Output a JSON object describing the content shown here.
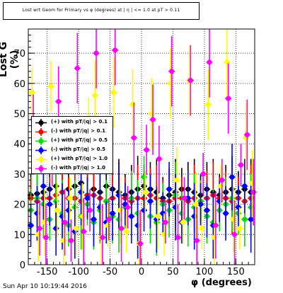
{
  "title": "Lost wrt Geom for Primary vs φ (degrees) at | η | <= 1.0 at pT > 0.11",
  "timestamp": "Sun Apr 10 10:19:44 2016",
  "chart_data": {
    "type": "scatter",
    "xlabel": "φ (degrees)",
    "ylabel": "Lost G (%)",
    "xlim": [
      -180,
      180
    ],
    "ylim": [
      0,
      78
    ],
    "xticks": [
      "-150",
      "-100",
      "-50",
      "0",
      "50",
      "100",
      "150"
    ],
    "yticks": [
      "0",
      "10",
      "20",
      "30",
      "40",
      "50",
      "60",
      "70"
    ],
    "grid": true,
    "legend_position": "middle-left",
    "series": [
      {
        "name": "(+) with pT/|q| > 0.1",
        "color": "#000000",
        "x": [
          -176,
          -166,
          -156,
          -146,
          -136,
          -126,
          -116,
          -106,
          -96,
          -86,
          -76,
          -66,
          -56,
          -46,
          -36,
          -26,
          -16,
          -6,
          4,
          14,
          24,
          34,
          44,
          54,
          64,
          74,
          84,
          94,
          104,
          114,
          124,
          134,
          144,
          154,
          164,
          174
        ],
        "y": [
          23,
          23.5,
          24,
          25,
          26,
          24,
          25,
          26,
          27,
          23,
          25,
          24,
          26,
          25,
          24,
          23,
          24,
          25,
          26,
          25,
          24,
          22,
          23,
          24,
          25,
          25,
          24,
          23,
          25,
          24,
          23,
          24,
          25,
          24,
          25,
          24
        ]
      },
      {
        "name": "(-) with pT/|q| > 0.1",
        "color": "#ff0000",
        "x": [
          -176,
          -166,
          -156,
          -146,
          -136,
          -126,
          -116,
          -106,
          -96,
          -86,
          -76,
          -66,
          -56,
          -46,
          -36,
          -26,
          -16,
          -6,
          4,
          14,
          24,
          34,
          44,
          54,
          64,
          74,
          84,
          94,
          104,
          114,
          124,
          134,
          144,
          154,
          164,
          174
        ],
        "y": [
          22,
          21,
          22,
          22,
          23,
          24,
          22,
          22,
          21,
          23,
          23,
          22,
          21,
          22,
          23,
          22,
          21,
          22,
          22,
          23,
          22,
          21,
          21,
          22,
          22,
          21,
          22,
          21,
          22,
          23,
          22,
          22,
          21,
          22,
          21,
          22
        ]
      },
      {
        "name": "(+) with pT/|q| > 0.5",
        "color": "#00dd00",
        "x": [
          -176,
          -166,
          -156,
          -146,
          -136,
          -126,
          -116,
          -106,
          -96,
          -86,
          -76,
          -66,
          -56,
          -46,
          -36,
          -26,
          -16,
          -6,
          4,
          14,
          24,
          34,
          44,
          54,
          64,
          74,
          84,
          94,
          104,
          114,
          124,
          134,
          144,
          154,
          164,
          174
        ],
        "y": [
          18,
          22,
          20,
          15,
          21,
          17,
          13,
          19,
          16,
          20,
          14,
          18,
          21,
          16,
          15,
          19,
          22,
          17,
          29,
          16,
          14,
          20,
          18,
          23,
          17,
          15,
          19,
          21,
          16,
          14,
          18,
          20,
          22,
          17,
          15,
          19
        ]
      },
      {
        "name": "(-) with pT/|q| > 0.5",
        "color": "#0000ff",
        "x": [
          -176,
          -166,
          -156,
          -146,
          -136,
          -126,
          -116,
          -106,
          -96,
          -86,
          -76,
          -66,
          -56,
          -46,
          -36,
          -26,
          -16,
          -6,
          4,
          14,
          24,
          34,
          44,
          54,
          64,
          74,
          84,
          94,
          104,
          114,
          124,
          134,
          144,
          154,
          164,
          174
        ],
        "y": [
          13,
          17,
          26,
          20,
          12,
          16,
          18,
          11,
          24,
          22,
          15,
          19,
          14,
          17,
          23,
          20,
          16,
          13,
          18,
          21,
          15,
          17,
          25,
          19,
          14,
          22,
          16,
          20,
          18,
          13,
          21,
          17,
          29,
          19,
          26,
          15
        ]
      },
      {
        "name": "(+) with pT/|q| > 1.0",
        "color": "#ffff00",
        "x": [
          -174,
          -164,
          -154,
          -144,
          -134,
          -124,
          -114,
          -104,
          -94,
          -84,
          -74,
          -64,
          -54,
          -44,
          -34,
          -24,
          -14,
          -4,
          6,
          16,
          26,
          36,
          46,
          56,
          66,
          76,
          86,
          96,
          106,
          116,
          126,
          136,
          146,
          156,
          166,
          176
        ],
        "y": [
          57,
          10,
          14,
          59,
          18,
          8,
          22,
          12,
          16,
          47,
          56,
          9,
          13,
          57,
          18,
          11,
          53,
          7,
          24,
          50,
          16,
          10,
          60,
          28,
          14,
          61,
          20,
          12,
          53,
          9,
          26,
          67,
          15,
          12,
          42,
          27
        ]
      },
      {
        "name": "(-) with pT/|q| > 1.0",
        "color": "#ff00ff",
        "x": [
          -172,
          -162,
          -152,
          -142,
          -132,
          -122,
          -112,
          -102,
          -92,
          -82,
          -72,
          -62,
          -52,
          -42,
          -32,
          -22,
          -12,
          -2,
          8,
          18,
          28,
          38,
          48,
          58,
          68,
          78,
          88,
          98,
          108,
          118,
          128,
          138,
          148,
          158,
          168,
          178
        ],
        "y": [
          48,
          12,
          9,
          33,
          54,
          14,
          8,
          65,
          11,
          18,
          70,
          9,
          15,
          71,
          12,
          19,
          42,
          7,
          38,
          48,
          35,
          14,
          64,
          9,
          22,
          61,
          8,
          30,
          67,
          13,
          28,
          55,
          10,
          33,
          43,
          24
        ]
      }
    ]
  }
}
